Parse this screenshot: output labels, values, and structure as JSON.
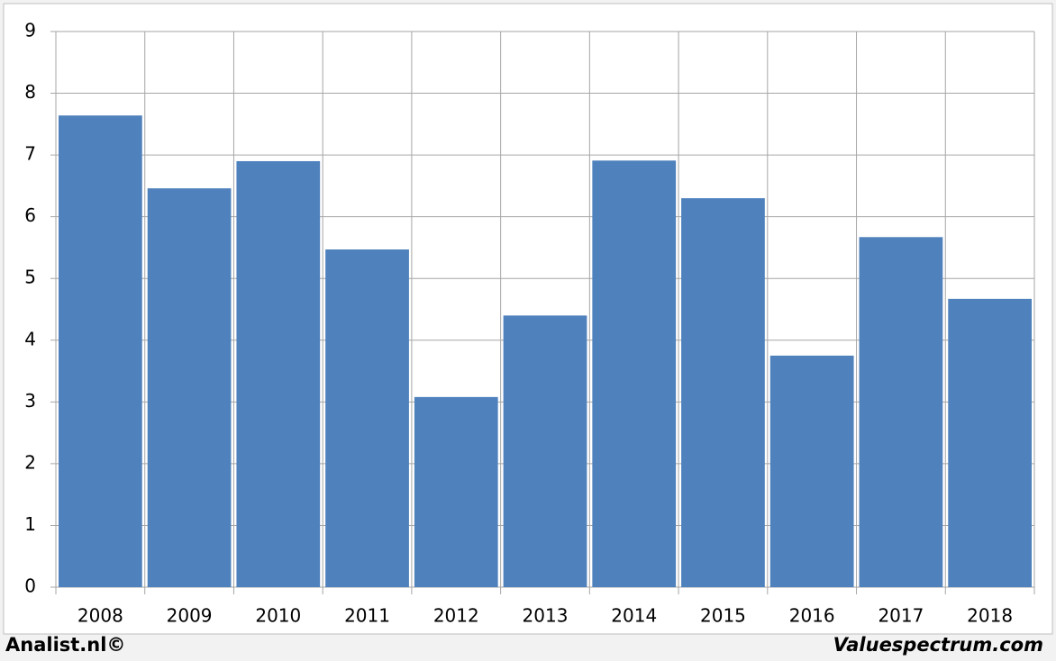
{
  "chart_data": {
    "type": "bar",
    "categories": [
      "2008",
      "2009",
      "2010",
      "2011",
      "2012",
      "2013",
      "2014",
      "2015",
      "2016",
      "2017",
      "2018"
    ],
    "values": [
      7.64,
      6.46,
      6.9,
      5.47,
      3.08,
      4.4,
      6.91,
      6.3,
      3.75,
      5.67,
      4.67
    ],
    "color": "#4f81bd",
    "ylim": [
      0,
      9
    ],
    "yticks": [
      0,
      1,
      2,
      3,
      4,
      5,
      6,
      7,
      8,
      9
    ],
    "grid": true
  },
  "footer": {
    "left": "Analist.nl©",
    "right": "Valuespectrum.com"
  }
}
